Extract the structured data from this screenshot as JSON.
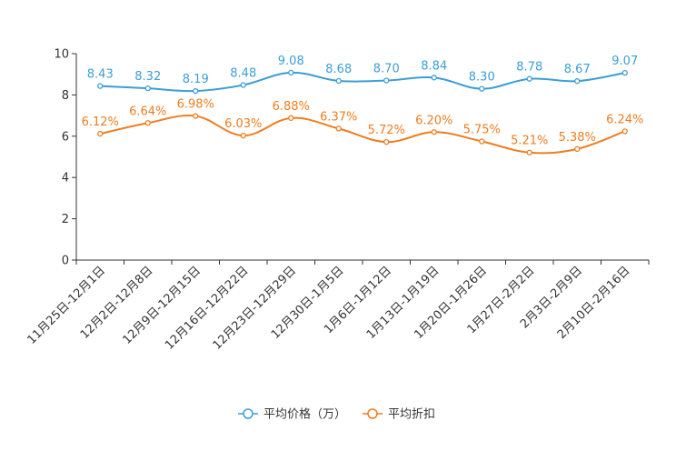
{
  "chart_data": {
    "type": "line",
    "categories": [
      "11月25日-12月1日",
      "12月2日-12月8日",
      "12月9日-12月15日",
      "12月16日-12月22日",
      "12月23日-12月29日",
      "12月30日-1月5日",
      "1月6日-1月12日",
      "1月13日-1月19日",
      "1月20日-1月26日",
      "1月27日-2月2日",
      "2月3日-2月9日",
      "2月10日-2月16日"
    ],
    "ylim": [
      0,
      10
    ],
    "yticks": [
      0,
      2,
      4,
      6,
      8,
      10
    ],
    "grid": false,
    "legend_position": "bottom-center",
    "series": [
      {
        "name": "平均价格（万）",
        "color": "#3c9ed6",
        "values": [
          8.43,
          8.32,
          8.19,
          8.48,
          9.08,
          8.68,
          8.7,
          8.84,
          8.3,
          8.78,
          8.67,
          9.07
        ],
        "labels": [
          "8.43",
          "8.32",
          "8.19",
          "8.48",
          "9.08",
          "8.68",
          "8.70",
          "8.84",
          "8.30",
          "8.78",
          "8.67",
          "9.07"
        ]
      },
      {
        "name": "平均折扣",
        "color": "#f07d1f",
        "values": [
          6.12,
          6.64,
          6.98,
          6.03,
          6.88,
          6.37,
          5.72,
          6.2,
          5.75,
          5.21,
          5.38,
          6.24
        ],
        "labels": [
          "6.12%",
          "6.64%",
          "6.98%",
          "6.03%",
          "6.88%",
          "6.37%",
          "5.72%",
          "6.20%",
          "5.75%",
          "5.21%",
          "5.38%",
          "6.24%"
        ]
      }
    ]
  }
}
